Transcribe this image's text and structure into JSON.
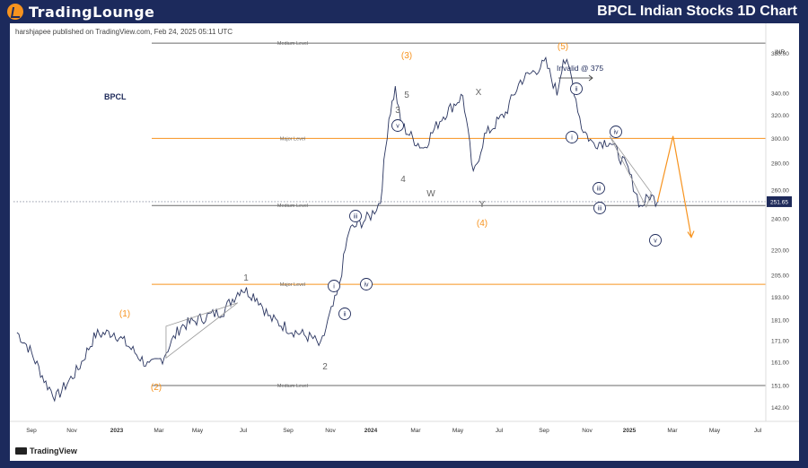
{
  "header": {
    "logo_part1": "TradingLounge",
    "report_title": "BPCL Indian Stocks 1D Chart"
  },
  "chart_meta": {
    "publisher": "harshjapee published on TradingView.com, Feb 24, 2025 05:11 UTC",
    "symbol": "BPCL",
    "currency": "INR",
    "last_price": "251.65",
    "footer_brand": "TradingView"
  },
  "colors": {
    "background": "#1c2a5c",
    "accent": "#f7931e",
    "wave_label": "#1e2a5a",
    "grey_label": "#666666",
    "price_badge": "#1e2a5a"
  },
  "chart_data": {
    "type": "line",
    "x_ticks": [
      "Sep",
      "Nov",
      "2023",
      "Mar",
      "May",
      "Jul",
      "Sep",
      "Nov",
      "2024",
      "Mar",
      "May",
      "Jul",
      "Sep",
      "Nov",
      "2025",
      "Mar",
      "May",
      "Jul"
    ],
    "y_ticks": [
      380,
      340,
      320,
      300,
      280,
      260,
      240,
      220,
      205,
      193,
      181,
      171,
      161,
      151,
      142
    ],
    "y_scale": "log",
    "ylim": [
      137,
      395
    ],
    "last_price": 251.65,
    "price_path": [
      [
        "2022-08-25",
        175
      ],
      [
        "2022-09-10",
        168
      ],
      [
        "2022-10-05",
        152
      ],
      [
        "2022-10-20",
        146
      ],
      [
        "2022-11-20",
        158
      ],
      [
        "2022-12-15",
        174
      ],
      [
        "2023-01-10",
        175
      ],
      [
        "2023-02-01",
        168
      ],
      [
        "2023-03-01",
        159
      ],
      [
        "2023-03-20",
        163
      ],
      [
        "2023-04-15",
        178
      ],
      [
        "2023-05-15",
        182
      ],
      [
        "2023-06-15",
        186
      ],
      [
        "2023-07-10",
        198
      ],
      [
        "2023-08-01",
        193
      ],
      [
        "2023-08-20",
        182
      ],
      [
        "2023-09-20",
        176
      ],
      [
        "2023-10-20",
        172
      ],
      [
        "2023-10-31",
        168
      ],
      [
        "2023-11-10",
        180
      ],
      [
        "2023-11-25",
        196
      ],
      [
        "2023-12-10",
        232
      ],
      [
        "2024-01-10",
        242
      ],
      [
        "2024-01-24",
        252
      ],
      [
        "2024-02-05",
        318
      ],
      [
        "2024-02-14",
        344
      ],
      [
        "2024-02-22",
        312
      ],
      [
        "2024-03-10",
        300
      ],
      [
        "2024-03-25",
        292
      ],
      [
        "2024-04-20",
        318
      ],
      [
        "2024-05-20",
        338
      ],
      [
        "2024-06-04",
        270
      ],
      [
        "2024-06-20",
        302
      ],
      [
        "2024-07-20",
        322
      ],
      [
        "2024-08-10",
        352
      ],
      [
        "2024-09-15",
        370
      ],
      [
        "2024-10-01",
        340
      ],
      [
        "2024-10-10",
        375
      ],
      [
        "2024-10-20",
        360
      ],
      [
        "2024-11-05",
        310
      ],
      [
        "2024-11-20",
        296
      ],
      [
        "2024-12-15",
        298
      ],
      [
        "2025-01-10",
        275
      ],
      [
        "2025-01-28",
        248
      ],
      [
        "2025-02-10",
        256
      ],
      [
        "2025-02-21",
        251.65
      ]
    ],
    "levels": [
      {
        "label": "Medium Level",
        "value": 391,
        "kind": "medium"
      },
      {
        "label": "Major Level",
        "value": 300,
        "kind": "major"
      },
      {
        "label": "Medium Level",
        "value": 249,
        "kind": "medium"
      },
      {
        "label": "Major Level",
        "value": 200,
        "kind": "major"
      },
      {
        "label": "Medium Level",
        "value": 151,
        "kind": "medium"
      }
    ],
    "annotations": [
      {
        "text": "(1)",
        "kind": "orange"
      },
      {
        "text": "(2)",
        "kind": "orange"
      },
      {
        "text": "(3)",
        "kind": "orange"
      },
      {
        "text": "(4)",
        "kind": "orange"
      },
      {
        "text": "(5)",
        "kind": "orange"
      },
      {
        "text": "1",
        "kind": "grey"
      },
      {
        "text": "2",
        "kind": "grey"
      },
      {
        "text": "3",
        "kind": "grey"
      },
      {
        "text": "4",
        "kind": "grey"
      },
      {
        "text": "5",
        "kind": "grey"
      },
      {
        "text": "W",
        "kind": "grey"
      },
      {
        "text": "X",
        "kind": "grey"
      },
      {
        "text": "Y",
        "kind": "grey"
      },
      {
        "text": "i",
        "kind": "circle"
      },
      {
        "text": "ii",
        "kind": "circle"
      },
      {
        "text": "iii",
        "kind": "circle"
      },
      {
        "text": "iv",
        "kind": "circle"
      },
      {
        "text": "v",
        "kind": "circle"
      },
      {
        "text": "iii",
        "kind": "circle"
      },
      {
        "text": "i",
        "kind": "circle"
      },
      {
        "text": "ii",
        "kind": "circle"
      },
      {
        "text": "iii",
        "kind": "circle"
      },
      {
        "text": "iv",
        "kind": "circle"
      },
      {
        "text": "v",
        "kind": "circle"
      },
      {
        "text": "Invalid @ 375",
        "kind": "note"
      }
    ],
    "projection": [
      [
        "2025-02-21",
        251.65
      ],
      [
        "2025-03-15",
        302
      ],
      [
        "2025-04-10",
        228
      ]
    ]
  }
}
